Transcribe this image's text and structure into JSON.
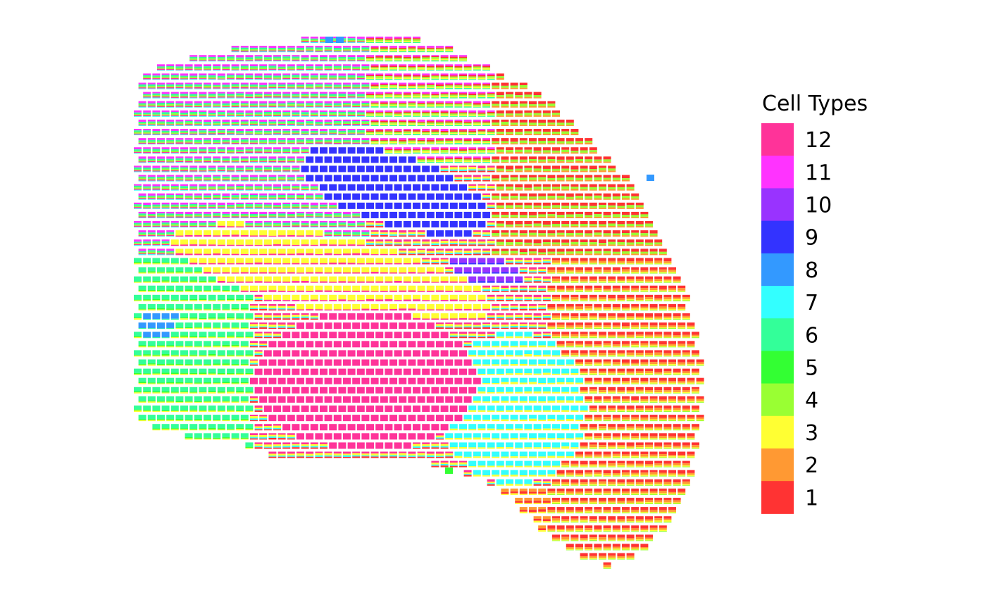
{
  "chart_data": {
    "type": "spatial-pie-scatter",
    "legend_title": "Cell Types",
    "legend_placement": "right",
    "grid": false,
    "axes_visible": false,
    "categories": [
      "1",
      "2",
      "3",
      "4",
      "5",
      "6",
      "7",
      "8",
      "9",
      "10",
      "11",
      "12"
    ],
    "colors": {
      "1": "#FF3333",
      "2": "#FF9933",
      "3": "#FFFF33",
      "4": "#99FF33",
      "5": "#33FF33",
      "6": "#33FF99",
      "7": "#33FFFF",
      "8": "#3399FF",
      "9": "#3333FF",
      "10": "#9933FF",
      "11": "#FF33FF",
      "12": "#FF3399"
    },
    "legend_order": [
      "12",
      "11",
      "10",
      "9",
      "8",
      "7",
      "6",
      "5",
      "4",
      "3",
      "2",
      "1"
    ],
    "regions": [
      {
        "dominant": "12",
        "desc_cells": "center-lower"
      },
      {
        "dominant": "9",
        "desc_cells": "upper-center"
      },
      {
        "dominant": "3",
        "desc_cells": "center band"
      },
      {
        "dominant": "7",
        "desc_cells": "lower-right-center"
      },
      {
        "dominant": "6",
        "desc_cells": "left"
      },
      {
        "dominant": "1",
        "desc_cells": "right"
      }
    ]
  }
}
